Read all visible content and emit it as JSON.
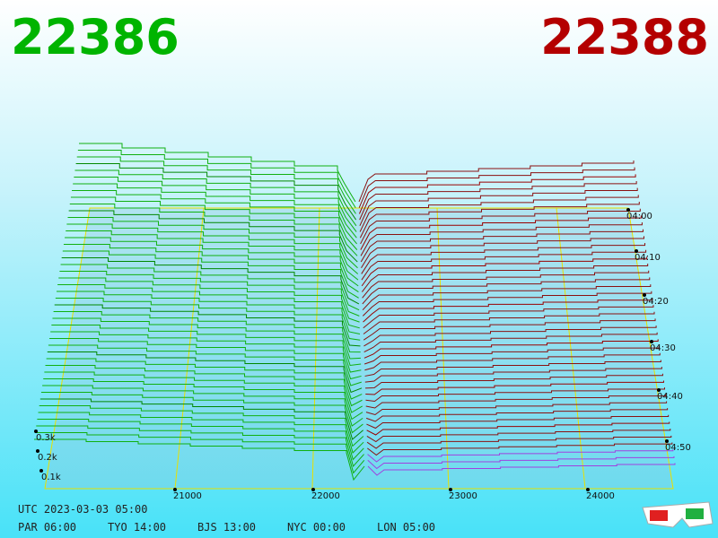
{
  "header": {
    "bid": "22386",
    "ask": "22388"
  },
  "price_axis": {
    "labels": [
      "21000",
      "22000",
      "23000",
      "24000"
    ]
  },
  "depth_axis": {
    "labels": [
      "0.3k",
      "0.2k",
      "0.1k"
    ]
  },
  "time_axis": {
    "labels": [
      "04:00",
      "04:10",
      "04:20",
      "04:30",
      "04:40",
      "04:50"
    ]
  },
  "footer": {
    "utc": "UTC 2023-03-03 05:00",
    "clocks": [
      "PAR 06:00",
      "TYO 14:00",
      "BJS 13:00",
      "NYC 00:00",
      "LON 05:00"
    ]
  }
}
